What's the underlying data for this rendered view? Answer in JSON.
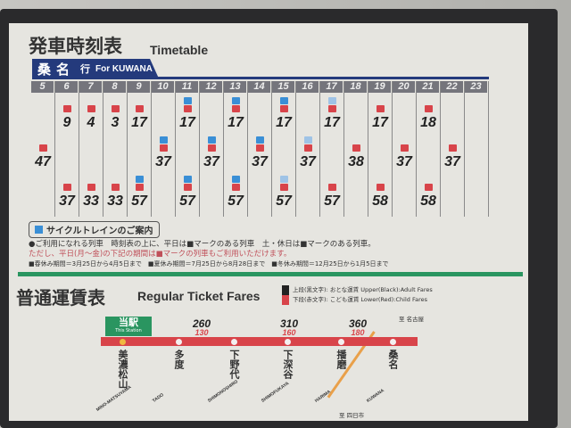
{
  "title": {
    "jp": "発車時刻表",
    "en": "Timetable"
  },
  "destination": {
    "jp": "桑名",
    "suffix": "行",
    "en": "For KUWANA"
  },
  "colors": {
    "navy": "#243a7c",
    "red": "#d8444a",
    "blue": "#3a8fd6",
    "green": "#2a9560"
  },
  "timetable": [
    {
      "hour": "5",
      "deps": [
        {
          "min": "47",
          "marks": [
            "red"
          ]
        }
      ]
    },
    {
      "hour": "6",
      "deps": [
        {
          "min": "9",
          "marks": [
            "red"
          ]
        },
        {
          "min": "37",
          "marks": [
            "red"
          ]
        }
      ]
    },
    {
      "hour": "7",
      "deps": [
        {
          "min": "4",
          "marks": [
            "red"
          ]
        },
        {
          "min": "33",
          "marks": [
            "red"
          ]
        }
      ]
    },
    {
      "hour": "8",
      "deps": [
        {
          "min": "3",
          "marks": [
            "red"
          ]
        },
        {
          "min": "33",
          "marks": [
            "red"
          ]
        }
      ]
    },
    {
      "hour": "9",
      "deps": [
        {
          "min": "17",
          "marks": [
            "red"
          ]
        },
        {
          "min": "57",
          "marks": [
            "blue",
            "red"
          ]
        }
      ]
    },
    {
      "hour": "10",
      "deps": [
        {
          "min": "37",
          "marks": [
            "blue",
            "red"
          ]
        }
      ]
    },
    {
      "hour": "11",
      "deps": [
        {
          "min": "17",
          "marks": [
            "blue",
            "red"
          ]
        },
        {
          "min": "57",
          "marks": [
            "blue",
            "red"
          ]
        }
      ]
    },
    {
      "hour": "12",
      "deps": [
        {
          "min": "37",
          "marks": [
            "blue",
            "red"
          ]
        }
      ]
    },
    {
      "hour": "13",
      "deps": [
        {
          "min": "17",
          "marks": [
            "blue",
            "red"
          ]
        },
        {
          "min": "57",
          "marks": [
            "blue",
            "red"
          ]
        }
      ]
    },
    {
      "hour": "14",
      "deps": [
        {
          "min": "37",
          "marks": [
            "blue",
            "red"
          ]
        }
      ]
    },
    {
      "hour": "15",
      "deps": [
        {
          "min": "17",
          "marks": [
            "blue",
            "red"
          ]
        },
        {
          "min": "57",
          "marks": [
            "lblue",
            "red"
          ]
        }
      ]
    },
    {
      "hour": "16",
      "deps": [
        {
          "min": "37",
          "marks": [
            "lblue",
            "red"
          ]
        }
      ]
    },
    {
      "hour": "17",
      "deps": [
        {
          "min": "17",
          "marks": [
            "lblue",
            "red"
          ]
        },
        {
          "min": "57",
          "marks": [
            "red"
          ]
        }
      ]
    },
    {
      "hour": "18",
      "deps": [
        {
          "min": "38",
          "marks": [
            "red"
          ]
        }
      ]
    },
    {
      "hour": "19",
      "deps": [
        {
          "min": "17",
          "marks": [
            "red"
          ]
        },
        {
          "min": "58",
          "marks": [
            "red"
          ]
        }
      ]
    },
    {
      "hour": "20",
      "deps": [
        {
          "min": "37",
          "marks": [
            "red"
          ]
        }
      ]
    },
    {
      "hour": "21",
      "deps": [
        {
          "min": "18",
          "marks": [
            "red"
          ]
        },
        {
          "min": "58",
          "marks": [
            "red"
          ]
        }
      ]
    },
    {
      "hour": "22",
      "deps": [
        {
          "min": "37",
          "marks": [
            "red"
          ]
        }
      ]
    },
    {
      "hour": "23",
      "deps": []
    }
  ],
  "cycle": {
    "heading": "サイクルトレインのご案内",
    "line1": "●ご利用になれる列車　時刻表の上に、平日は■マークのある列車　土・休日は■マークのある列車。",
    "line2": "ただし、平日(月～金)の下記の期間は■マークの列車もご利用いただけます。",
    "line3": "■春休み期間＝3月25日から4月5日まで　■夏休み期間＝7月25日から8月28日まで　■冬休み期間＝12月25日から1月5日まで"
  },
  "fares": {
    "title_jp": "普通運賃表",
    "title_en": "Regular Ticket Fares",
    "legend_upper": "上段(黒文字): おとな運賃 Upper(Black):Adult Fares",
    "legend_lower": "下段(赤文字): こども運賃 Lower(Red):Child Fares",
    "here_jp": "当駅",
    "here_en": "This Station",
    "segments": [
      {
        "adult": "260",
        "child": "130"
      },
      {
        "adult": "310",
        "child": "160"
      },
      {
        "adult": "360",
        "child": "180"
      }
    ],
    "stations": [
      {
        "jp": "美濃松山",
        "en": "MINO-MATSUYAMA"
      },
      {
        "jp": "多度",
        "en": "TADO"
      },
      {
        "jp": "下野代",
        "en": "SHIMONOSHIRO"
      },
      {
        "jp": "下深谷",
        "en": "SHIMOFUKAYA"
      },
      {
        "jp": "播磨",
        "en": "HARIMA"
      },
      {
        "jp": "桑名",
        "en": "KUWANA"
      }
    ],
    "to_nagoya": "至 名古屋",
    "to_yokkaichi": "至 四日市"
  }
}
